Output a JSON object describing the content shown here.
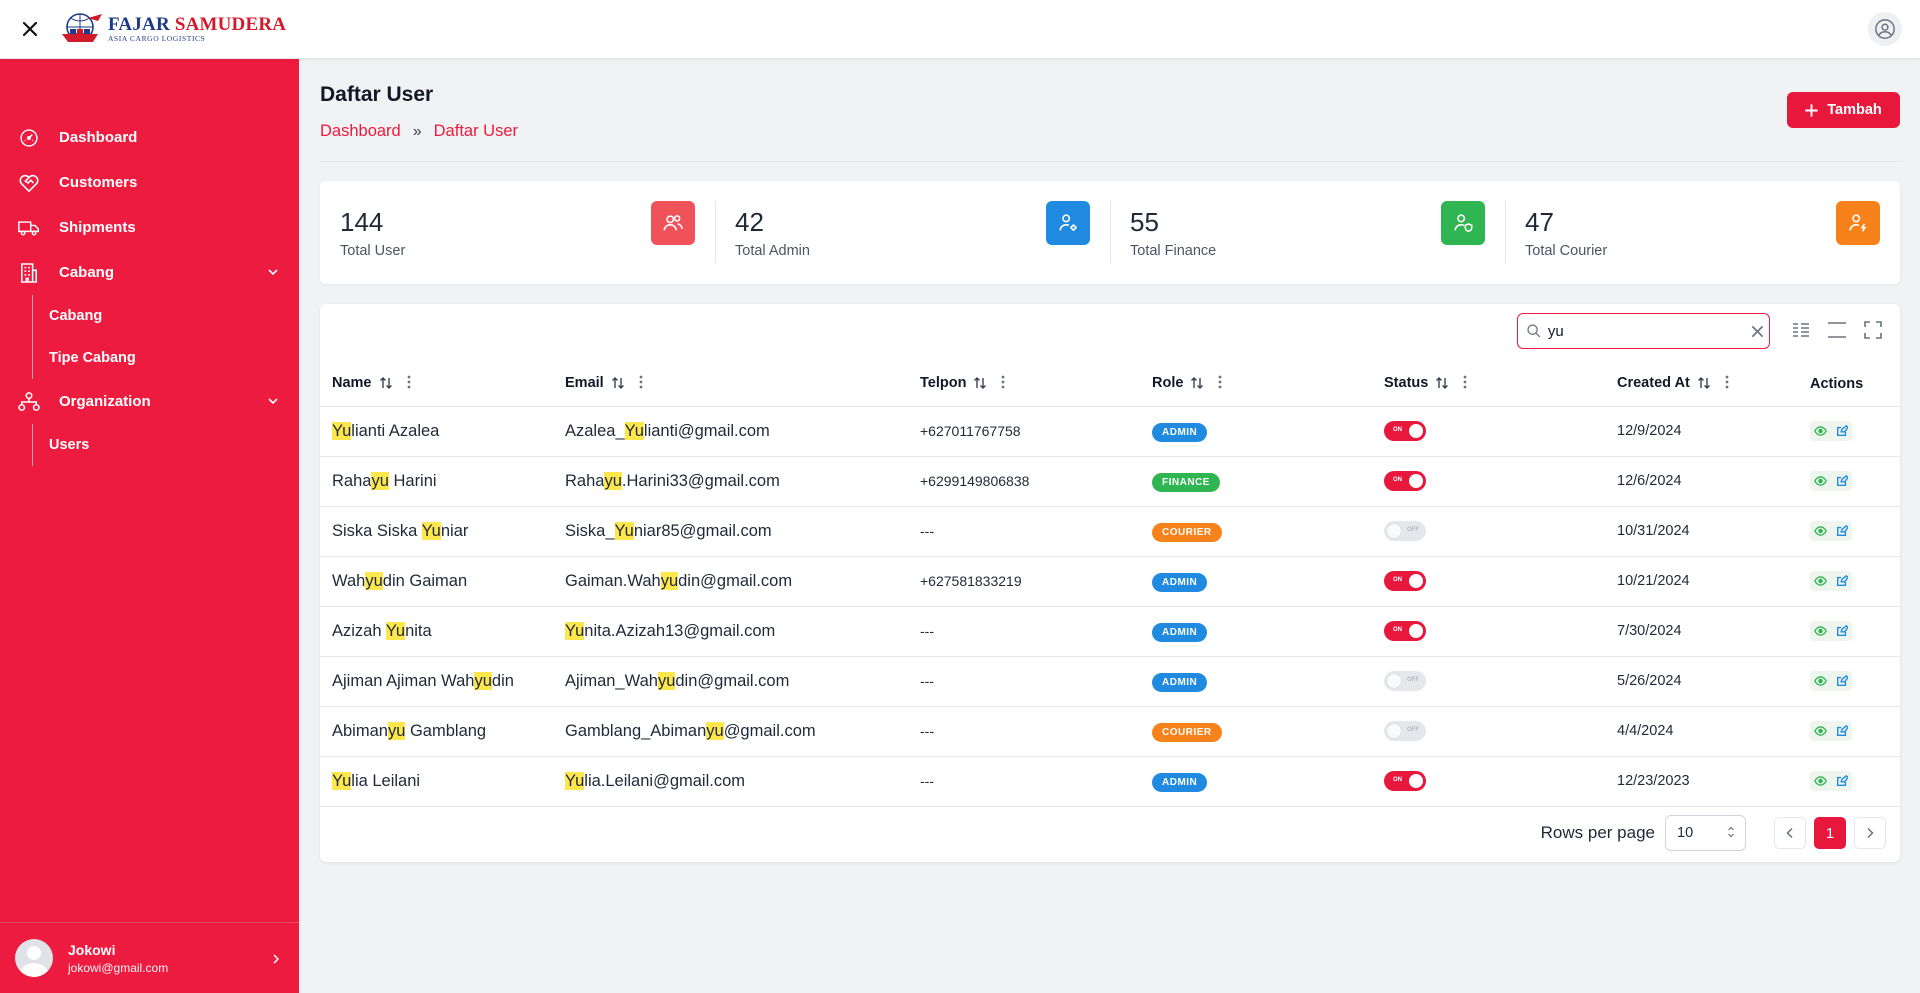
{
  "header": {
    "brand_main_1": "FAJAR",
    "brand_main_2": "SAMUDERA",
    "brand_sub": "ASIA CARGO LOGISTICS"
  },
  "sidebar": {
    "items": [
      {
        "label": "Dashboard",
        "icon": "gauge-icon"
      },
      {
        "label": "Customers",
        "icon": "heart-handshake-icon"
      },
      {
        "label": "Shipments",
        "icon": "truck-icon"
      },
      {
        "label": "Cabang",
        "icon": "building-icon",
        "sub": [
          "Cabang",
          "Tipe Cabang"
        ]
      },
      {
        "label": "Organization",
        "icon": "org-chart-icon",
        "sub": [
          "Users"
        ]
      }
    ],
    "user": {
      "name": "Jokowi",
      "email": "jokowi@gmail.com"
    }
  },
  "page": {
    "title": "Daftar User",
    "breadcrumb": [
      "Dashboard",
      "Daftar User"
    ],
    "add_label": "Tambah"
  },
  "stats": [
    {
      "value": "144",
      "label": "Total User",
      "color": "#f0525a"
    },
    {
      "value": "42",
      "label": "Total Admin",
      "color": "#1f8ae0"
    },
    {
      "value": "55",
      "label": "Total Finance",
      "color": "#2fb551"
    },
    {
      "value": "47",
      "label": "Total Courier",
      "color": "#f7821c"
    }
  ],
  "search": {
    "value": "yu"
  },
  "table": {
    "headers": [
      "Name",
      "Email",
      "Telpon",
      "Role",
      "Status",
      "Created At",
      "Actions"
    ],
    "rows": [
      {
        "name": [
          "",
          "Yu",
          "lianti Azalea"
        ],
        "email": [
          "Azalea_",
          "Yu",
          "lianti@gmail.com"
        ],
        "telpon": "+627011767758",
        "role": "ADMIN",
        "status": "on",
        "created": "12/9/2024"
      },
      {
        "name": [
          "Raha",
          "yu",
          " Harini"
        ],
        "email": [
          "Raha",
          "yu",
          ".Harini33@gmail.com"
        ],
        "telpon": "+6299149806838",
        "role": "FINANCE",
        "status": "on",
        "created": "12/6/2024"
      },
      {
        "name": [
          "Siska Siska ",
          "Yu",
          "niar"
        ],
        "email": [
          "Siska_",
          "Yu",
          "niar85@gmail.com"
        ],
        "telpon": "---",
        "role": "COURIER",
        "status": "off",
        "created": "10/31/2024"
      },
      {
        "name": [
          "Wah",
          "yu",
          "din Gaiman"
        ],
        "email": [
          "Gaiman.Wah",
          "yu",
          "din@gmail.com"
        ],
        "telpon": "+627581833219",
        "role": "ADMIN",
        "status": "on",
        "created": "10/21/2024"
      },
      {
        "name": [
          "Azizah ",
          "Yu",
          "nita"
        ],
        "email": [
          "",
          "Yu",
          "nita.Azizah13@gmail.com"
        ],
        "telpon": "---",
        "role": "ADMIN",
        "status": "on",
        "created": "7/30/2024"
      },
      {
        "name": [
          "Ajiman Ajiman Wah",
          "yu",
          "din"
        ],
        "email": [
          "Ajiman_Wah",
          "yu",
          "din@gmail.com"
        ],
        "telpon": "---",
        "role": "ADMIN",
        "status": "off",
        "created": "5/26/2024"
      },
      {
        "name": [
          "Abiman",
          "yu",
          " Gamblang"
        ],
        "email": [
          "Gamblang_Abiman",
          "yu",
          "@gmail.com"
        ],
        "telpon": "---",
        "role": "COURIER",
        "status": "off",
        "created": "4/4/2024"
      },
      {
        "name": [
          "",
          "Yu",
          "lia Leilani"
        ],
        "email": [
          "",
          "Yu",
          "lia.Leilani@gmail.com"
        ],
        "telpon": "---",
        "role": "ADMIN",
        "status": "on",
        "created": "12/23/2023"
      }
    ],
    "toggle_on_text": "ON",
    "toggle_off_text": "OFF"
  },
  "role_colors": {
    "ADMIN": "#1f8ae0",
    "FINANCE": "#2fb551",
    "COURIER": "#f7821c"
  },
  "pagination": {
    "rows_per_page_label": "Rows per page",
    "rows_per_page": "10",
    "current_page": "1"
  }
}
